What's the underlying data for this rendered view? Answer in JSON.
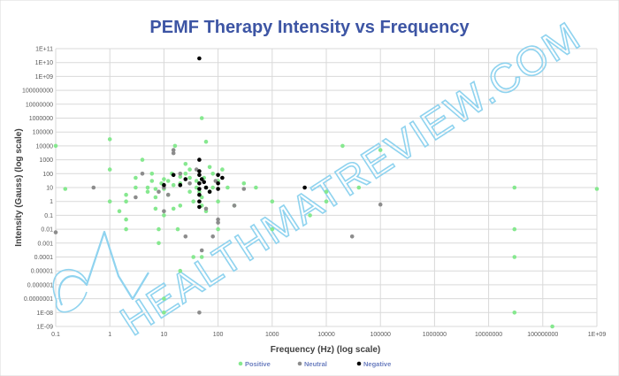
{
  "chart_data": {
    "type": "scatter",
    "title": "PEMF Therapy Intensity vs Frequency",
    "xlabel": "Frequency (Hz)  (log scale)",
    "ylabel": "Intensity (Gauss)  (log scale)",
    "x_scale": "log",
    "y_scale": "log",
    "xlim": [
      0.1,
      1000000000
    ],
    "ylim": [
      1e-09,
      100000000000
    ],
    "x_ticks": [
      "0.1",
      "1",
      "10",
      "100",
      "1000",
      "10000",
      "100000",
      "1000000",
      "10000000",
      "100000000",
      "1E+09"
    ],
    "y_ticks": [
      "1E-09",
      "1E-08",
      "0.0000001",
      "0.000001",
      "0.00001",
      "0.0001",
      "0.001",
      "0.01",
      "0.1",
      "1",
      "10",
      "100",
      "1000",
      "10000",
      "100000",
      "1000000",
      "10000000",
      "100000000",
      "1E+09",
      "1E+10",
      "1E+11"
    ],
    "grid": true,
    "legend_position": "bottom",
    "series": [
      {
        "name": "Positive",
        "color": "#86e88f",
        "points": [
          [
            0.1,
            10000
          ],
          [
            0.15,
            8
          ],
          [
            1,
            30000
          ],
          [
            1,
            200
          ],
          [
            1,
            1
          ],
          [
            1.5,
            0.2
          ],
          [
            2,
            0.05
          ],
          [
            2,
            0.01
          ],
          [
            2,
            1
          ],
          [
            2,
            3
          ],
          [
            3,
            10
          ],
          [
            3,
            50
          ],
          [
            4,
            1000
          ],
          [
            5,
            10
          ],
          [
            5,
            5
          ],
          [
            6,
            30
          ],
          [
            6,
            100
          ],
          [
            7,
            8
          ],
          [
            7,
            2
          ],
          [
            7,
            0.3
          ],
          [
            8,
            0.001
          ],
          [
            8,
            0.01
          ],
          [
            9,
            20
          ],
          [
            10,
            8
          ],
          [
            10,
            40
          ],
          [
            10,
            0.1
          ],
          [
            10,
            1e-07
          ],
          [
            10,
            1e-08
          ],
          [
            12,
            3
          ],
          [
            12,
            30
          ],
          [
            14,
            100
          ],
          [
            15,
            0.3
          ],
          [
            15,
            15
          ],
          [
            16,
            10000
          ],
          [
            18,
            0.01
          ],
          [
            20,
            0.5
          ],
          [
            20,
            20
          ],
          [
            20,
            60
          ],
          [
            20,
            1e-05
          ],
          [
            25,
            100
          ],
          [
            25,
            500
          ],
          [
            30,
            5
          ],
          [
            30,
            50
          ],
          [
            30,
            200
          ],
          [
            35,
            1
          ],
          [
            35,
            0.0001
          ],
          [
            40,
            10
          ],
          [
            40,
            30
          ],
          [
            45,
            5
          ],
          [
            50,
            1000000
          ],
          [
            50,
            0.5
          ],
          [
            50,
            0.0001
          ],
          [
            50,
            2
          ],
          [
            55,
            50
          ],
          [
            60,
            20000
          ],
          [
            60,
            10
          ],
          [
            60,
            0.2
          ],
          [
            70,
            300
          ],
          [
            70,
            5
          ],
          [
            80,
            100
          ],
          [
            80,
            10
          ],
          [
            100,
            1
          ],
          [
            100,
            30
          ],
          [
            100,
            0.01
          ],
          [
            120,
            200
          ],
          [
            150,
            10
          ],
          [
            200,
            0.5
          ],
          [
            300,
            20
          ],
          [
            500,
            10
          ],
          [
            1000,
            1
          ],
          [
            1000,
            0.01
          ],
          [
            5000,
            0.1
          ],
          [
            10000,
            1
          ],
          [
            10000,
            5
          ],
          [
            20000,
            10000
          ],
          [
            40000,
            10
          ],
          [
            100000,
            5000
          ],
          [
            30000000,
            10
          ],
          [
            30000000,
            0.01
          ],
          [
            30000000,
            0.0001
          ],
          [
            30000000,
            1e-08
          ],
          [
            150000000,
            1e-09
          ],
          [
            1000000000,
            8
          ]
        ]
      },
      {
        "name": "Neutral",
        "color": "#8c8c8c",
        "points": [
          [
            0.1,
            0.006
          ],
          [
            0.5,
            10
          ],
          [
            3,
            2
          ],
          [
            4,
            100
          ],
          [
            8,
            5
          ],
          [
            10,
            0.2
          ],
          [
            10,
            10
          ],
          [
            12,
            3
          ],
          [
            15,
            3000
          ],
          [
            15,
            5000
          ],
          [
            20,
            100
          ],
          [
            25,
            0.003
          ],
          [
            30,
            20
          ],
          [
            40,
            200
          ],
          [
            45,
            1e-08
          ],
          [
            50,
            0.0003
          ],
          [
            60,
            0.3
          ],
          [
            80,
            0.003
          ],
          [
            90,
            30
          ],
          [
            100,
            0.05
          ],
          [
            100,
            0.03
          ],
          [
            200,
            0.5
          ],
          [
            300,
            8
          ],
          [
            30000,
            0.003
          ],
          [
            100000,
            0.6
          ]
        ]
      },
      {
        "name": "Negative",
        "color": "#000000",
        "points": [
          [
            10,
            15
          ],
          [
            15,
            80
          ],
          [
            20,
            15
          ],
          [
            25,
            40
          ],
          [
            45,
            20000000000
          ],
          [
            45,
            1000
          ],
          [
            45,
            150
          ],
          [
            45,
            80
          ],
          [
            45,
            20
          ],
          [
            45,
            8
          ],
          [
            45,
            3
          ],
          [
            45,
            1
          ],
          [
            45,
            0.4
          ],
          [
            50,
            40
          ],
          [
            55,
            25
          ],
          [
            60,
            10
          ],
          [
            70,
            5
          ],
          [
            100,
            80
          ],
          [
            100,
            20
          ],
          [
            100,
            8
          ],
          [
            120,
            50
          ],
          [
            4000,
            10
          ]
        ]
      }
    ]
  },
  "watermark": {
    "text": "HEALTHMATREVIEW.COM"
  }
}
